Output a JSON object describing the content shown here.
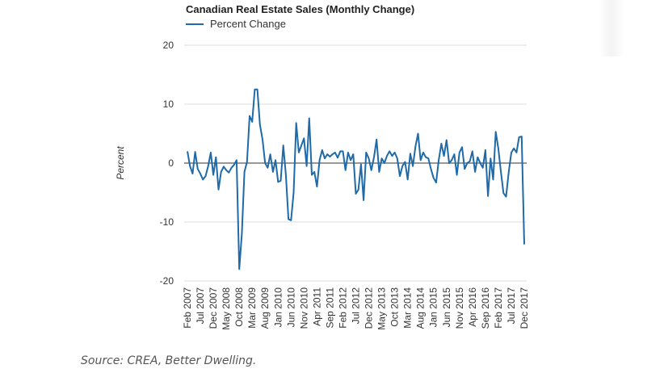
{
  "chart_data": {
    "type": "line",
    "title": "Canadian Real Estate Sales (Monthly Change)",
    "xlabel": "",
    "ylabel": "Percent",
    "ylim": [
      -20,
      20
    ],
    "yticks": [
      20,
      10,
      0,
      -10,
      -20
    ],
    "grid": true,
    "legend_position": "top-left",
    "x_start": "Feb 2007",
    "x_end": "Dec 2017",
    "x_tick_labels": [
      "Feb 2007",
      "Jul 2007",
      "Dec 2007",
      "May 2008",
      "Oct 2008",
      "Mar 2009",
      "Aug 2009",
      "Jan 2010",
      "Jun 2010",
      "Nov 2010",
      "Apr 2011",
      "Sep 2011",
      "Feb 2012",
      "Jul 2012",
      "Dec 2012",
      "May 2013",
      "Oct 2013",
      "Mar 2014",
      "Aug 2014",
      "Jan 2015",
      "Jun 2015",
      "Nov 2015",
      "Apr 2016",
      "Sep 2016",
      "Feb 2017",
      "Jul 2017",
      "Dec 2017"
    ],
    "series": [
      {
        "name": "Percent Change",
        "color": "#1f6aa8",
        "values": [
          2.0,
          -0.5,
          -1.8,
          1.9,
          -1.0,
          -1.8,
          -2.8,
          -2.2,
          -0.5,
          1.8,
          -2.0,
          1.0,
          -4.5,
          -1.5,
          -0.6,
          -1.2,
          -1.6,
          -0.8,
          -0.3,
          0.5,
          -18.0,
          -12.0,
          -1.5,
          0.2,
          8.0,
          7.0,
          12.5,
          12.5,
          6.5,
          4.0,
          0.0,
          -0.8,
          1.5,
          -1.5,
          0.5,
          -3.2,
          -3.0,
          3.0,
          -2.0,
          -9.5,
          -9.7,
          -5.0,
          6.8,
          1.8,
          3.0,
          4.2,
          -0.5,
          7.6,
          -2.0,
          -1.5,
          -4.0,
          0.5,
          2.2,
          0.8,
          1.5,
          1.1,
          1.5,
          1.8,
          0.9,
          2.0,
          2.0,
          -1.2,
          1.8,
          0.5,
          1.5,
          -5.2,
          -4.5,
          -0.2,
          -6.3,
          1.8,
          0.8,
          -1.2,
          1.0,
          4.0,
          -1.5,
          0.8,
          0.0,
          1.2,
          2.0,
          1.2,
          1.8,
          0.8,
          -2.2,
          -0.5,
          0.2,
          -2.8,
          1.6,
          -0.5,
          2.8,
          5.0,
          0.5,
          1.8,
          1.0,
          0.8,
          -1.0,
          -2.5,
          -3.3,
          0.5,
          3.3,
          1.2,
          3.9,
          0.0,
          0.5,
          1.5,
          -2.0,
          1.8,
          2.7,
          -1.0,
          0.0,
          0.3,
          2.0,
          -1.5,
          1.0,
          0.0,
          -0.8,
          2.2,
          -5.6,
          0.8,
          -2.8,
          5.3,
          2.5,
          -1.5,
          -5.1,
          -5.7,
          -1.5,
          1.8,
          2.5,
          1.8,
          4.4,
          4.5,
          -13.8
        ]
      }
    ]
  },
  "source_note": "Source: CREA, Better Dwelling."
}
